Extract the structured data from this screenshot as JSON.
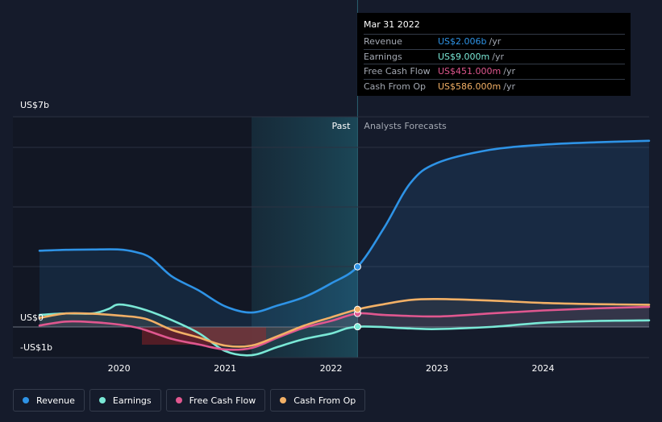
{
  "tooltip": {
    "date": "Mar 31 2022",
    "rows": [
      {
        "label": "Revenue",
        "value": "US$2.006b",
        "unit": "/yr",
        "color": "#2e93e6"
      },
      {
        "label": "Earnings",
        "value": "US$9.000m",
        "unit": "/yr",
        "color": "#7ae8d6"
      },
      {
        "label": "Free Cash Flow",
        "value": "US$451.000m",
        "unit": "/yr",
        "color": "#e0578f"
      },
      {
        "label": "Cash From Op",
        "value": "US$586.000m",
        "unit": "/yr",
        "color": "#f2b066"
      }
    ]
  },
  "legend": [
    {
      "label": "Revenue",
      "color": "#2e93e6"
    },
    {
      "label": "Earnings",
      "color": "#7ae8d6"
    },
    {
      "label": "Free Cash Flow",
      "color": "#e0578f"
    },
    {
      "label": "Cash From Op",
      "color": "#f2b066"
    }
  ],
  "chart_data": {
    "type": "line",
    "title": "",
    "xlabel": "",
    "ylabel": "",
    "x_ticks": [
      "2020",
      "2021",
      "2022",
      "2023",
      "2024"
    ],
    "y_tick_labels": [
      "US$7b",
      "US$0",
      "-US$1b"
    ],
    "ylim": [
      -1,
      7
    ],
    "xlim": [
      2019.25,
      2025.0
    ],
    "past_label": "Past",
    "forecast_label": "Analysts Forecasts",
    "past_shade_start": 2021.25,
    "current_date": 2022.25,
    "grid": true,
    "series": [
      {
        "name": "Revenue",
        "color": "#2e93e6",
        "x": [
          2019.25,
          2019.5,
          2019.75,
          2020.0,
          2020.15,
          2020.3,
          2020.5,
          2020.75,
          2021.0,
          2021.25,
          2021.5,
          2021.75,
          2022.0,
          2022.25,
          2022.5,
          2022.75,
          2023.0,
          2023.5,
          2024.0,
          2024.5,
          2025.0
        ],
        "y": [
          2.54,
          2.57,
          2.58,
          2.58,
          2.5,
          2.3,
          1.68,
          1.22,
          0.69,
          0.48,
          0.72,
          1.0,
          1.45,
          2.006,
          3.3,
          4.8,
          5.46,
          5.9,
          6.07,
          6.15,
          6.2
        ]
      },
      {
        "name": "Earnings",
        "color": "#7ae8d6",
        "x": [
          2019.25,
          2019.5,
          2019.75,
          2019.9,
          2020.0,
          2020.2,
          2020.45,
          2020.75,
          2021.0,
          2021.25,
          2021.5,
          2021.75,
          2022.0,
          2022.25,
          2022.75,
          2023.0,
          2023.5,
          2024.0,
          2024.5,
          2025.0
        ],
        "y": [
          0.4,
          0.45,
          0.45,
          0.6,
          0.75,
          0.62,
          0.3,
          -0.2,
          -0.8,
          -0.94,
          -0.66,
          -0.4,
          -0.22,
          0.009,
          -0.05,
          -0.07,
          0.0,
          0.14,
          0.2,
          0.22
        ]
      },
      {
        "name": "Free Cash Flow",
        "color": "#e0578f",
        "x": [
          2019.25,
          2019.5,
          2019.75,
          2020.0,
          2020.2,
          2020.5,
          2020.75,
          2021.0,
          2021.25,
          2021.5,
          2021.75,
          2022.0,
          2022.25,
          2022.5,
          2023.0,
          2023.5,
          2024.0,
          2024.5,
          2025.0
        ],
        "y": [
          0.05,
          0.18,
          0.16,
          0.08,
          -0.05,
          -0.4,
          -0.58,
          -0.75,
          -0.7,
          -0.35,
          -0.02,
          0.2,
          0.451,
          0.4,
          0.35,
          0.45,
          0.55,
          0.62,
          0.67
        ]
      },
      {
        "name": "Cash From Op",
        "color": "#f2b066",
        "x": [
          2019.25,
          2019.5,
          2019.75,
          2020.0,
          2020.25,
          2020.5,
          2020.75,
          2021.0,
          2021.25,
          2021.5,
          2021.75,
          2022.0,
          2022.25,
          2022.5,
          2022.75,
          2023.0,
          2023.5,
          2024.0,
          2024.5,
          2025.0
        ],
        "y": [
          0.3,
          0.45,
          0.44,
          0.38,
          0.27,
          -0.1,
          -0.35,
          -0.62,
          -0.62,
          -0.3,
          0.05,
          0.32,
          0.586,
          0.76,
          0.9,
          0.93,
          0.88,
          0.8,
          0.76,
          0.74
        ]
      }
    ]
  }
}
